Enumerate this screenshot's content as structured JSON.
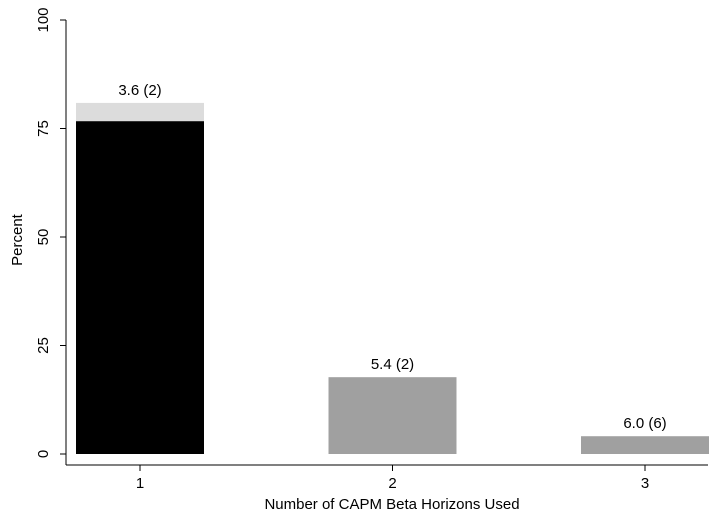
{
  "chart_data": {
    "type": "bar",
    "stacked": true,
    "x_label": "Number of CAPM Beta Horizons Used",
    "y_label": "Percent",
    "categories": [
      "1",
      "2",
      "3"
    ],
    "series": [
      {
        "values": [
          76.7,
          17.7,
          4.1
        ],
        "colors": [
          "#000000",
          "#a0a0a0",
          "#a0a0a0"
        ]
      },
      {
        "values": [
          4.2,
          null,
          null
        ],
        "colors": [
          "#dcdcdc",
          "#dcdcdc",
          "#dcdcdc"
        ]
      }
    ],
    "annotations": [
      "3.6 (2)",
      "5.4 (2)",
      "6.0 (6)"
    ],
    "ylim": [
      0,
      100
    ],
    "yticks": [
      0,
      25,
      50,
      75,
      100
    ],
    "grid": false
  }
}
